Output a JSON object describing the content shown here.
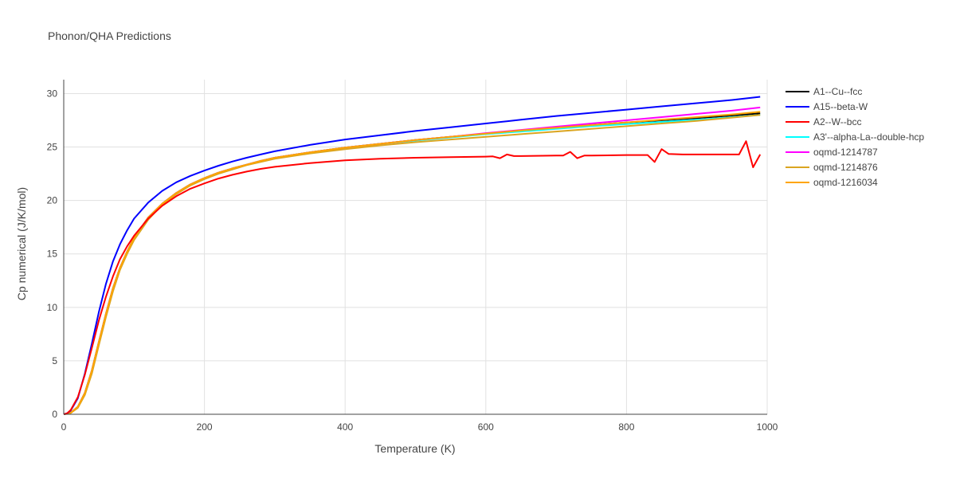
{
  "chart_data": {
    "type": "line",
    "title": "Phonon/QHA Predictions",
    "xlabel": "Temperature (K)",
    "ylabel": "Cp numerical (J/K/mol)",
    "xlim": [
      0,
      1000
    ],
    "ylim": [
      0,
      31.3
    ],
    "xticks": [
      0,
      200,
      400,
      600,
      800,
      1000
    ],
    "yticks": [
      0,
      5,
      10,
      15,
      20,
      25,
      30
    ],
    "grid": true,
    "legend_position": "right",
    "series": [
      {
        "name": "A1--Cu--fcc",
        "color": "#000000",
        "x": [
          0,
          5,
          10,
          20,
          30,
          40,
          50,
          60,
          70,
          80,
          90,
          100,
          120,
          140,
          160,
          180,
          200,
          220,
          240,
          260,
          280,
          300,
          350,
          400,
          450,
          500,
          550,
          600,
          650,
          700,
          750,
          800,
          850,
          900,
          950,
          990
        ],
        "y": [
          0,
          0.05,
          0.15,
          0.7,
          2.0,
          4.1,
          6.8,
          9.4,
          11.8,
          13.7,
          15.2,
          16.5,
          18.4,
          19.7,
          20.7,
          21.5,
          22.1,
          22.6,
          23.0,
          23.35,
          23.7,
          24.0,
          24.5,
          24.95,
          25.3,
          25.65,
          25.95,
          26.25,
          26.55,
          26.8,
          27.05,
          27.3,
          27.5,
          27.7,
          27.95,
          28.15
        ]
      },
      {
        "name": "A15--beta-W",
        "color": "#0000ff",
        "x": [
          0,
          5,
          10,
          20,
          30,
          40,
          50,
          60,
          70,
          80,
          90,
          100,
          120,
          140,
          160,
          180,
          200,
          220,
          240,
          260,
          280,
          300,
          350,
          400,
          450,
          500,
          550,
          600,
          650,
          700,
          750,
          800,
          850,
          900,
          950,
          990
        ],
        "y": [
          0,
          0.1,
          0.35,
          1.5,
          3.8,
          6.6,
          9.6,
          12.2,
          14.3,
          15.9,
          17.2,
          18.3,
          19.8,
          20.9,
          21.7,
          22.3,
          22.8,
          23.25,
          23.65,
          24.0,
          24.3,
          24.6,
          25.2,
          25.7,
          26.1,
          26.5,
          26.85,
          27.2,
          27.55,
          27.9,
          28.2,
          28.5,
          28.8,
          29.1,
          29.4,
          29.7
        ]
      },
      {
        "name": "A2--W--bcc",
        "color": "#ff0000",
        "x": [
          0,
          5,
          10,
          20,
          30,
          40,
          50,
          60,
          70,
          80,
          90,
          100,
          120,
          140,
          160,
          180,
          200,
          220,
          240,
          260,
          280,
          300,
          350,
          400,
          450,
          500,
          550,
          600,
          610,
          620,
          630,
          640,
          650,
          700,
          710,
          720,
          730,
          740,
          750,
          800,
          830,
          840,
          850,
          860,
          880,
          900,
          920,
          940,
          960,
          970,
          980,
          990
        ],
        "y": [
          0,
          0.1,
          0.4,
          1.6,
          3.7,
          6.2,
          8.8,
          11.0,
          12.9,
          14.5,
          15.7,
          16.7,
          18.3,
          19.5,
          20.4,
          21.1,
          21.6,
          22.05,
          22.4,
          22.7,
          22.95,
          23.15,
          23.5,
          23.75,
          23.9,
          24.0,
          24.05,
          24.1,
          24.12,
          23.95,
          24.3,
          24.15,
          24.15,
          24.2,
          24.2,
          24.55,
          23.95,
          24.2,
          24.2,
          24.25,
          24.25,
          23.6,
          24.8,
          24.35,
          24.3,
          24.3,
          24.3,
          24.3,
          24.3,
          25.55,
          23.1,
          24.3
        ]
      },
      {
        "name": "A3'--alpha-La--double-hcp",
        "color": "#00ffff",
        "x": [
          0,
          5,
          10,
          20,
          30,
          40,
          50,
          60,
          70,
          80,
          90,
          100,
          120,
          140,
          160,
          180,
          200,
          220,
          240,
          260,
          280,
          300,
          350,
          400,
          450,
          500,
          550,
          600,
          650,
          700,
          750,
          800,
          850,
          900,
          950,
          990
        ],
        "y": [
          0,
          0.05,
          0.15,
          0.7,
          2.0,
          4.1,
          6.8,
          9.4,
          11.8,
          13.7,
          15.2,
          16.5,
          18.4,
          19.7,
          20.7,
          21.5,
          22.1,
          22.6,
          23.0,
          23.35,
          23.7,
          24.0,
          24.5,
          24.95,
          25.3,
          25.6,
          25.9,
          26.2,
          26.45,
          26.7,
          26.95,
          27.15,
          27.35,
          27.55,
          27.8,
          28.0
        ]
      },
      {
        "name": "oqmd-1214787",
        "color": "#ff00ff",
        "x": [
          0,
          5,
          10,
          20,
          30,
          40,
          50,
          60,
          70,
          80,
          90,
          100,
          120,
          140,
          160,
          180,
          200,
          220,
          240,
          260,
          280,
          300,
          350,
          400,
          450,
          500,
          550,
          600,
          650,
          700,
          750,
          800,
          850,
          900,
          950,
          990
        ],
        "y": [
          0,
          0.05,
          0.15,
          0.7,
          2.0,
          4.1,
          6.8,
          9.4,
          11.8,
          13.7,
          15.2,
          16.5,
          18.4,
          19.7,
          20.7,
          21.5,
          22.1,
          22.6,
          23.0,
          23.35,
          23.7,
          24.0,
          24.5,
          24.95,
          25.3,
          25.65,
          25.95,
          26.3,
          26.6,
          26.9,
          27.2,
          27.5,
          27.8,
          28.1,
          28.4,
          28.7
        ]
      },
      {
        "name": "oqmd-1214876",
        "color": "#daa520",
        "x": [
          0,
          5,
          10,
          20,
          30,
          40,
          50,
          60,
          70,
          80,
          90,
          100,
          120,
          140,
          160,
          180,
          200,
          220,
          240,
          260,
          280,
          300,
          350,
          400,
          450,
          500,
          550,
          600,
          650,
          700,
          750,
          800,
          850,
          900,
          950,
          990
        ],
        "y": [
          0,
          0.04,
          0.12,
          0.6,
          1.8,
          3.8,
          6.5,
          9.1,
          11.5,
          13.5,
          15.0,
          16.3,
          18.2,
          19.6,
          20.6,
          21.4,
          22.0,
          22.5,
          22.9,
          23.3,
          23.6,
          23.9,
          24.4,
          24.8,
          25.15,
          25.45,
          25.7,
          25.95,
          26.2,
          26.45,
          26.7,
          26.95,
          27.2,
          27.45,
          27.75,
          28.0
        ]
      },
      {
        "name": "oqmd-1216034",
        "color": "#ffa500",
        "x": [
          0,
          5,
          10,
          20,
          30,
          40,
          50,
          60,
          70,
          80,
          90,
          100,
          120,
          140,
          160,
          180,
          200,
          220,
          240,
          260,
          280,
          300,
          350,
          400,
          450,
          500,
          550,
          600,
          650,
          700,
          750,
          800,
          850,
          900,
          950,
          990
        ],
        "y": [
          0,
          0.05,
          0.15,
          0.7,
          2.0,
          4.1,
          6.8,
          9.4,
          11.8,
          13.7,
          15.2,
          16.5,
          18.4,
          19.7,
          20.7,
          21.5,
          22.1,
          22.6,
          23.0,
          23.35,
          23.7,
          24.0,
          24.5,
          24.95,
          25.3,
          25.65,
          25.95,
          26.25,
          26.55,
          26.8,
          27.05,
          27.3,
          27.55,
          27.8,
          28.05,
          28.3
        ]
      }
    ]
  }
}
